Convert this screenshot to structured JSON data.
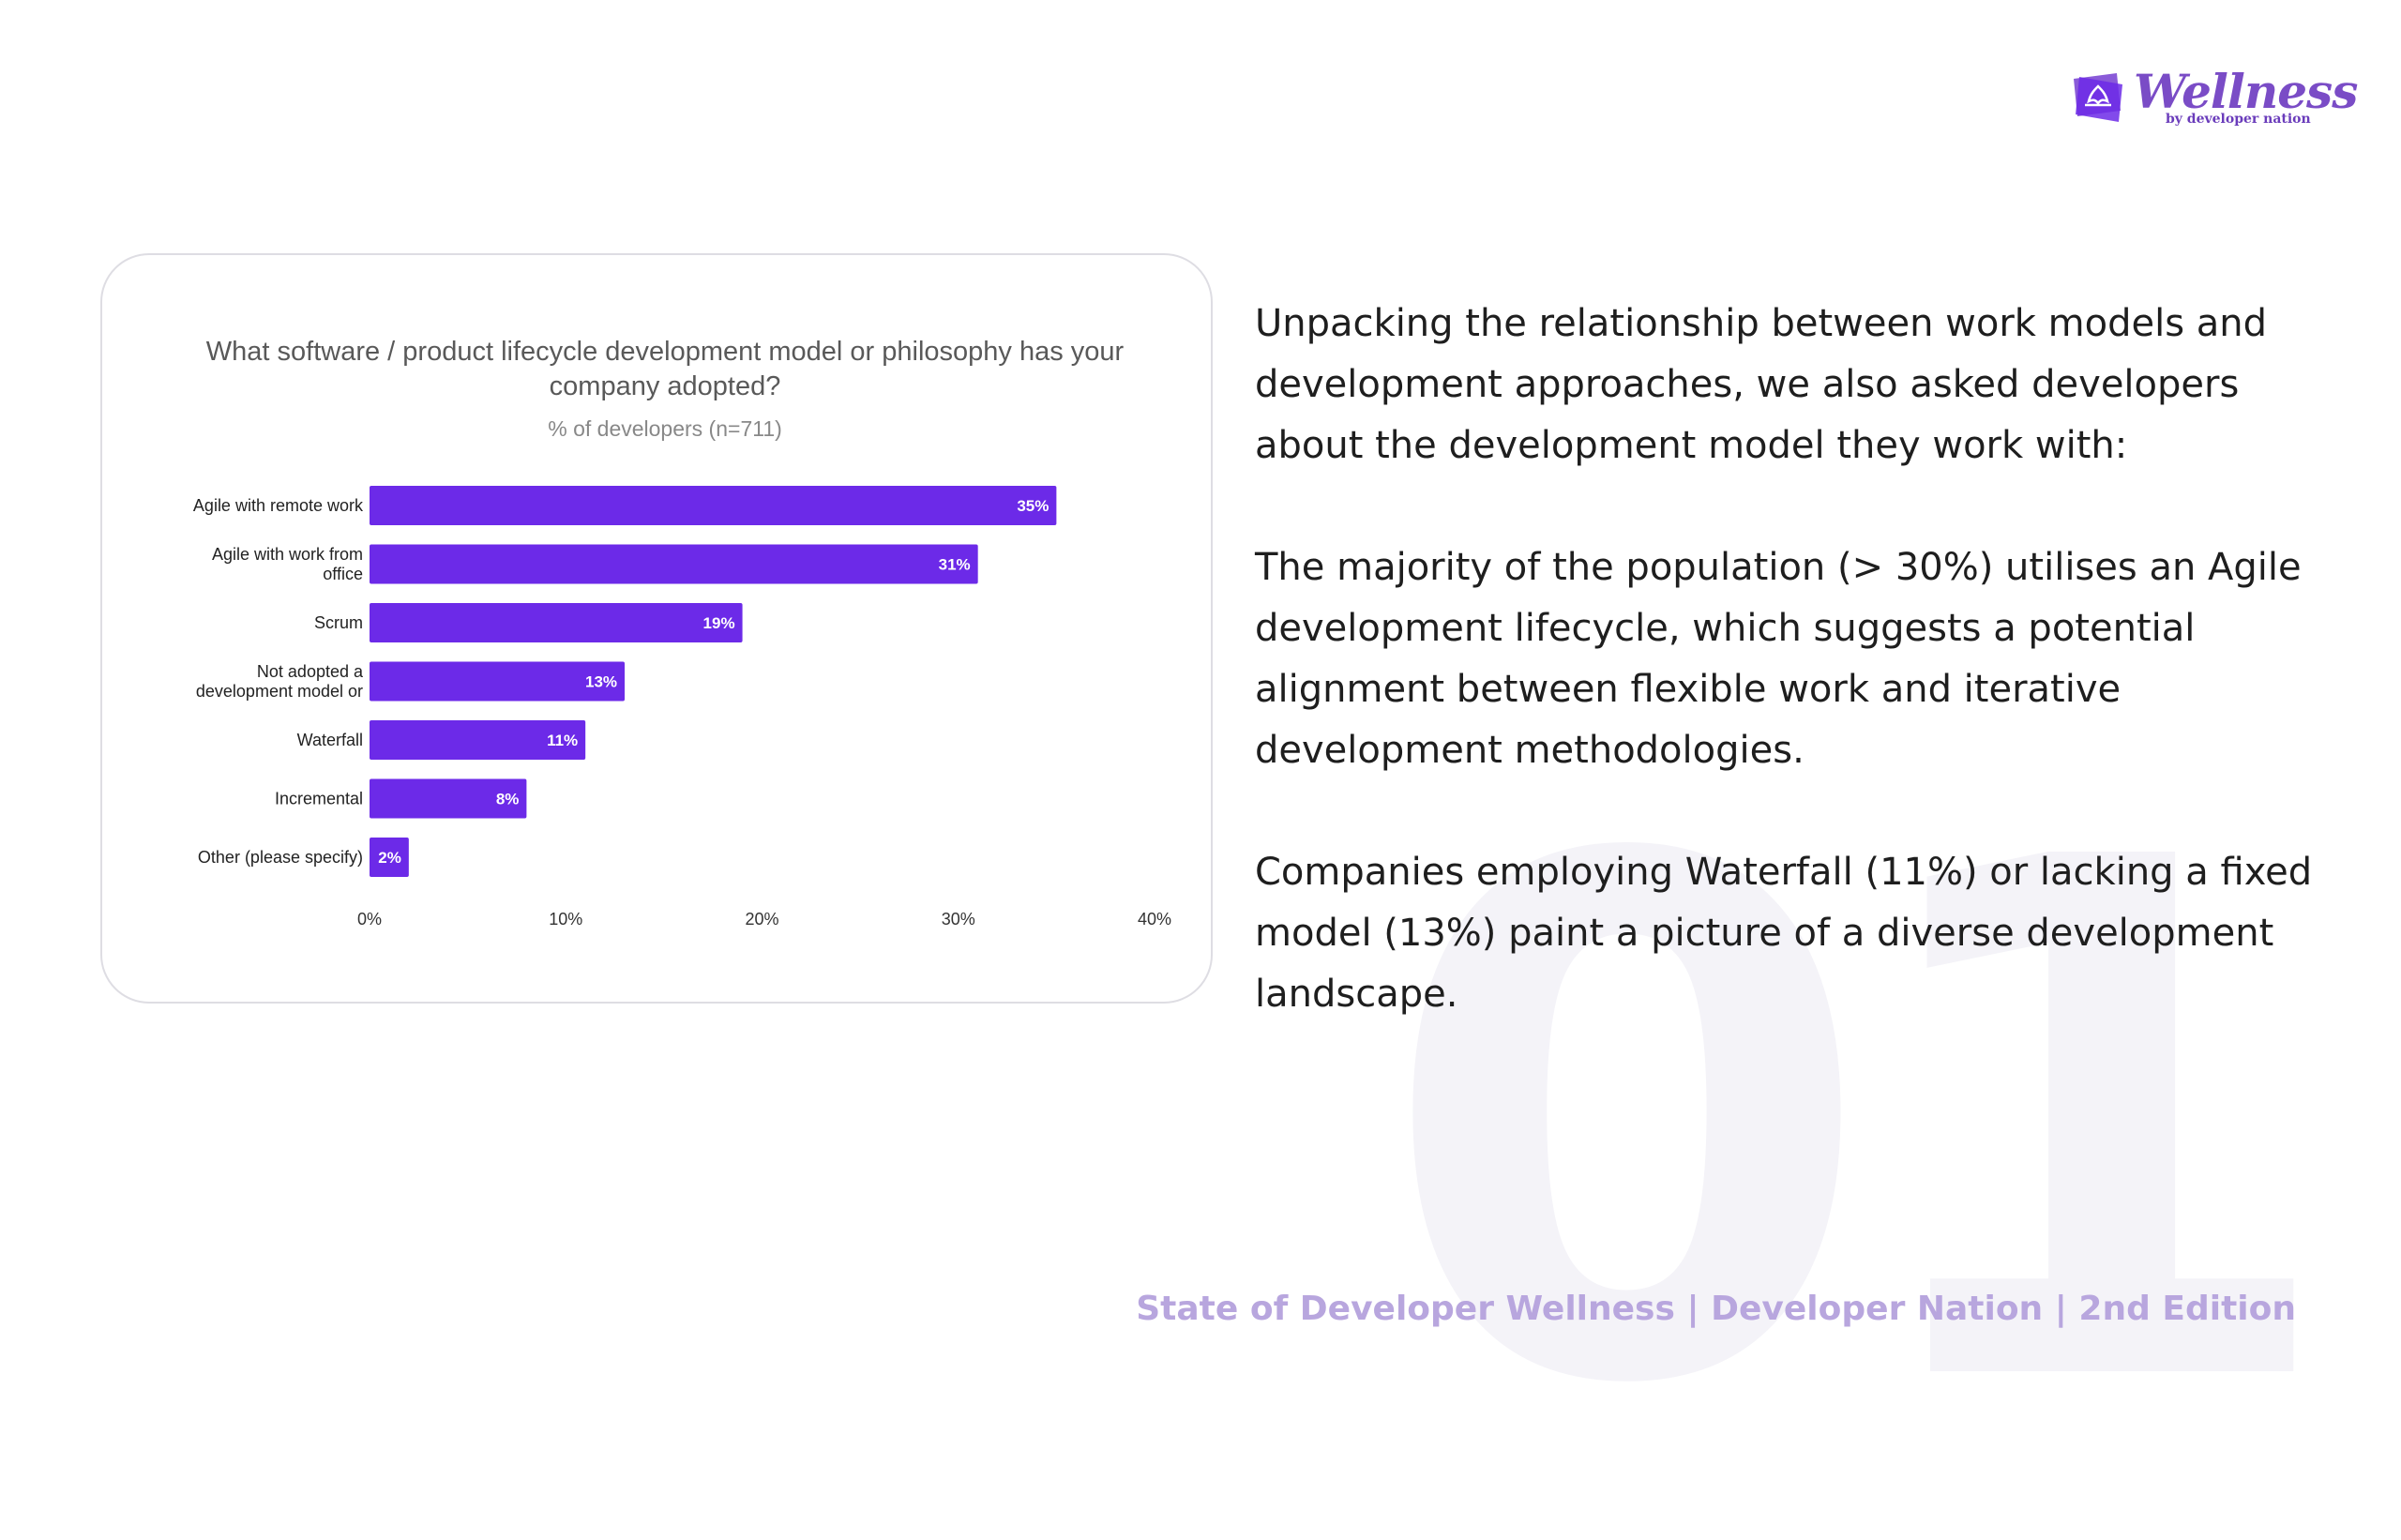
{
  "background_number": "01",
  "brand": {
    "logo_text": "Wellness",
    "logo_tagline": "by developer nation",
    "accent_color": "#6c2ae8",
    "icon": "wellness-lotus-icon"
  },
  "chart_data": {
    "type": "bar",
    "orientation": "horizontal",
    "title": "What software / product lifecycle development model or philosophy has your company adopted?",
    "subtitle": "% of developers (n=711)",
    "categories": [
      [
        "Agile with remote work"
      ],
      [
        "Agile with work from",
        "office"
      ],
      [
        "Scrum"
      ],
      [
        "Not adopted a",
        "development model or"
      ],
      [
        "Waterfall"
      ],
      [
        "Incremental"
      ],
      [
        "Other (please specify)"
      ]
    ],
    "values": [
      35,
      31,
      19,
      13,
      11,
      8,
      2
    ],
    "value_labels": [
      "35%",
      "31%",
      "19%",
      "13%",
      "11%",
      "8%",
      "2%"
    ],
    "x_ticks": [
      0,
      10,
      20,
      30,
      40
    ],
    "x_tick_labels": [
      "0%",
      "10%",
      "20%",
      "30%",
      "40%"
    ],
    "xlim": [
      0,
      40
    ],
    "bar_color": "#6c2ae8",
    "grid": false,
    "legend": "none"
  },
  "text": {
    "paragraphs": [
      "Unpacking the relationship between work models and development approaches, we also asked developers about the development model they work with:",
      "The majority of the population (> 30%) utilises an Agile development lifecycle, which suggests a potential alignment between flexible work and iterative development methodologies.",
      "Companies employing Waterfall (11%) or lacking a fixed model (13%) paint a picture of a diverse development landscape."
    ]
  },
  "footer": {
    "text": "State of Developer Wellness | Developer Nation | 2nd Edition"
  }
}
